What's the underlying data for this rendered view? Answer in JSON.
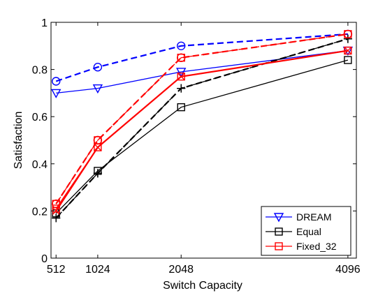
{
  "chart_data": {
    "type": "line",
    "title": "",
    "xlabel": "Switch Capacity",
    "ylabel": "Satisfaction",
    "xlim": [
      450,
      4200
    ],
    "ylim": [
      0,
      1
    ],
    "x_ticks": [
      512,
      1024,
      2048,
      4096
    ],
    "x_tick_labels": [
      "512",
      "1024",
      "2048",
      "4096"
    ],
    "y_ticks": [
      0,
      0.2,
      0.4,
      0.6,
      0.8,
      1
    ],
    "y_tick_labels": [
      "0",
      "0.2",
      "0.4",
      "0.6",
      "0.8",
      "1"
    ],
    "grid": false,
    "legend_position": "bottom-right",
    "x": [
      512,
      1024,
      2048,
      4096
    ],
    "series": [
      {
        "name": "DREAM",
        "color": "#0000ff",
        "marker": "triangle-down",
        "style": "solid",
        "width": 1.3,
        "values": [
          0.7,
          0.72,
          0.79,
          0.88
        ]
      },
      {
        "name": "Equal",
        "color": "#000000",
        "marker": "square",
        "style": "solid",
        "width": 1.3,
        "values": [
          0.19,
          0.37,
          0.64,
          0.84
        ]
      },
      {
        "name": "Fixed_32",
        "color": "#ff0000",
        "marker": "square",
        "style": "solid",
        "width": 1.3,
        "values": [
          0.21,
          0.47,
          0.77,
          0.88
        ]
      },
      {
        "color": "#0000ff",
        "marker": "circle",
        "style": "dashed",
        "width": 2.2,
        "values": [
          0.75,
          0.81,
          0.9,
          0.95
        ]
      },
      {
        "color": "#000000",
        "marker": "plus",
        "style": "dashed",
        "width": 1.3,
        "values": [
          0.17,
          0.36,
          0.72,
          0.93
        ]
      },
      {
        "color": "#ff0000",
        "marker": "square",
        "style": "dashed",
        "width": 1.3,
        "values": [
          0.23,
          0.5,
          0.85,
          0.95
        ]
      },
      {
        "color": "#000000",
        "marker": "plus",
        "style": "dashed",
        "width": 2.2,
        "values": [
          0.17,
          0.36,
          0.72,
          0.93
        ]
      },
      {
        "color": "#ff0000",
        "marker": "circle",
        "style": "dashed",
        "width": 2.2,
        "values": [
          0.23,
          0.5,
          0.85,
          0.95
        ]
      },
      {
        "color": "#ff0000",
        "marker": "cross",
        "style": "solid",
        "width": 2.2,
        "values": [
          0.2,
          0.47,
          0.77,
          0.88
        ]
      }
    ]
  }
}
